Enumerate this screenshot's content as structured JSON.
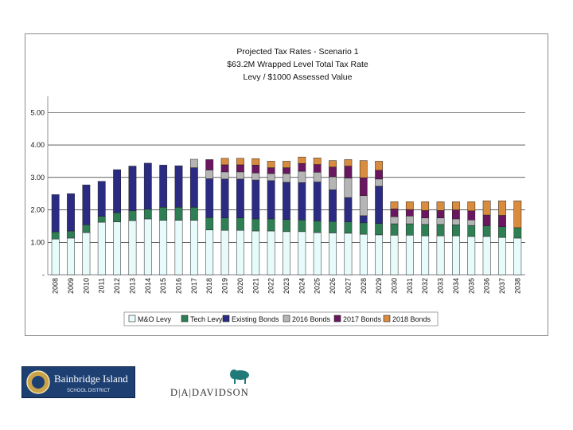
{
  "chart_data": {
    "type": "bar",
    "stacked": true,
    "title": [
      "Projected Tax Rates - Scenario 1",
      "$63.2M Wrapped Level Total Tax Rate",
      "Levy / $1000 Assessed Value"
    ],
    "categories": [
      "2008",
      "2009",
      "2010",
      "2011",
      "2012",
      "2013",
      "2014",
      "2015",
      "2016",
      "2017",
      "2018",
      "2019",
      "2020",
      "2021",
      "2022",
      "2023",
      "2024",
      "2025",
      "2026",
      "2027",
      "2028",
      "2029",
      "2030",
      "2031",
      "2032",
      "2033",
      "2034",
      "2035",
      "2036",
      "2037",
      "2038"
    ],
    "y_tick_labels": [
      "-",
      "1.00",
      "2.00",
      "3.00",
      "4.00",
      "5.00"
    ],
    "y_ticks": [
      0,
      1,
      2,
      3,
      4,
      5
    ],
    "ylim": [
      0,
      5.5
    ],
    "grid": true,
    "legend_position": "bottom",
    "series": [
      {
        "name": "M&O Levy",
        "color": "#e8fbfb",
        "values": [
          1.1,
          1.13,
          1.3,
          1.62,
          1.63,
          1.67,
          1.72,
          1.68,
          1.68,
          1.68,
          1.38,
          1.37,
          1.37,
          1.35,
          1.35,
          1.33,
          1.33,
          1.3,
          1.29,
          1.28,
          1.25,
          1.23,
          1.22,
          1.22,
          1.2,
          1.2,
          1.2,
          1.18,
          1.18,
          1.15,
          1.13
        ]
      },
      {
        "name": "Tech Levy",
        "color": "#2f7f55",
        "values": [
          0.22,
          0.22,
          0.24,
          0.18,
          0.28,
          0.3,
          0.3,
          0.4,
          0.4,
          0.4,
          0.38,
          0.38,
          0.38,
          0.37,
          0.37,
          0.37,
          0.36,
          0.36,
          0.35,
          0.35,
          0.35,
          0.35,
          0.35,
          0.35,
          0.35,
          0.35,
          0.34,
          0.34,
          0.33,
          0.33,
          0.32
        ]
      },
      {
        "name": "Existing Bonds",
        "color": "#2b2b84",
        "values": [
          1.15,
          1.15,
          1.23,
          1.08,
          1.33,
          1.38,
          1.42,
          1.3,
          1.28,
          1.22,
          1.2,
          1.2,
          1.2,
          1.2,
          1.18,
          1.15,
          1.15,
          1.2,
          0.98,
          0.75,
          0.22,
          1.15,
          0.0,
          0.0,
          0.0,
          0.0,
          0.0,
          0.0,
          0.0,
          0.0,
          0.0
        ]
      },
      {
        "name": "2016 Bonds",
        "color": "#b5b5b5",
        "values": [
          0,
          0,
          0,
          0,
          0,
          0,
          0,
          0,
          0,
          0.26,
          0.27,
          0.22,
          0.22,
          0.22,
          0.22,
          0.27,
          0.35,
          0.3,
          0.4,
          0.6,
          0.62,
          0.22,
          0.22,
          0.24,
          0.2,
          0.2,
          0.18,
          0.17,
          0.0,
          0.0,
          0.0
        ]
      },
      {
        "name": "2017 Bonds",
        "color": "#6a1660",
        "values": [
          0,
          0,
          0,
          0,
          0,
          0,
          0,
          0,
          0,
          0,
          0.32,
          0.22,
          0.22,
          0.24,
          0.18,
          0.18,
          0.24,
          0.24,
          0.3,
          0.37,
          0.55,
          0.27,
          0.24,
          0.2,
          0.23,
          0.23,
          0.28,
          0.28,
          0.33,
          0.35,
          0.0
        ]
      },
      {
        "name": "2018 Bonds",
        "color": "#d98b3e",
        "values": [
          0,
          0,
          0,
          0,
          0,
          0,
          0,
          0,
          0,
          0,
          0,
          0.2,
          0.2,
          0.2,
          0.2,
          0.2,
          0.2,
          0.2,
          0.2,
          0.2,
          0.53,
          0.28,
          0.22,
          0.24,
          0.27,
          0.27,
          0.25,
          0.28,
          0.44,
          0.45,
          0.83
        ]
      }
    ]
  },
  "logos": {
    "bainbridge": {
      "name": "Bainbridge Island",
      "subtitle": "SCHOOL DISTRICT",
      "color": "#1d3f72"
    },
    "davidson": {
      "text": "D|A|DAVIDSON",
      "color": "#1f7a78"
    }
  }
}
